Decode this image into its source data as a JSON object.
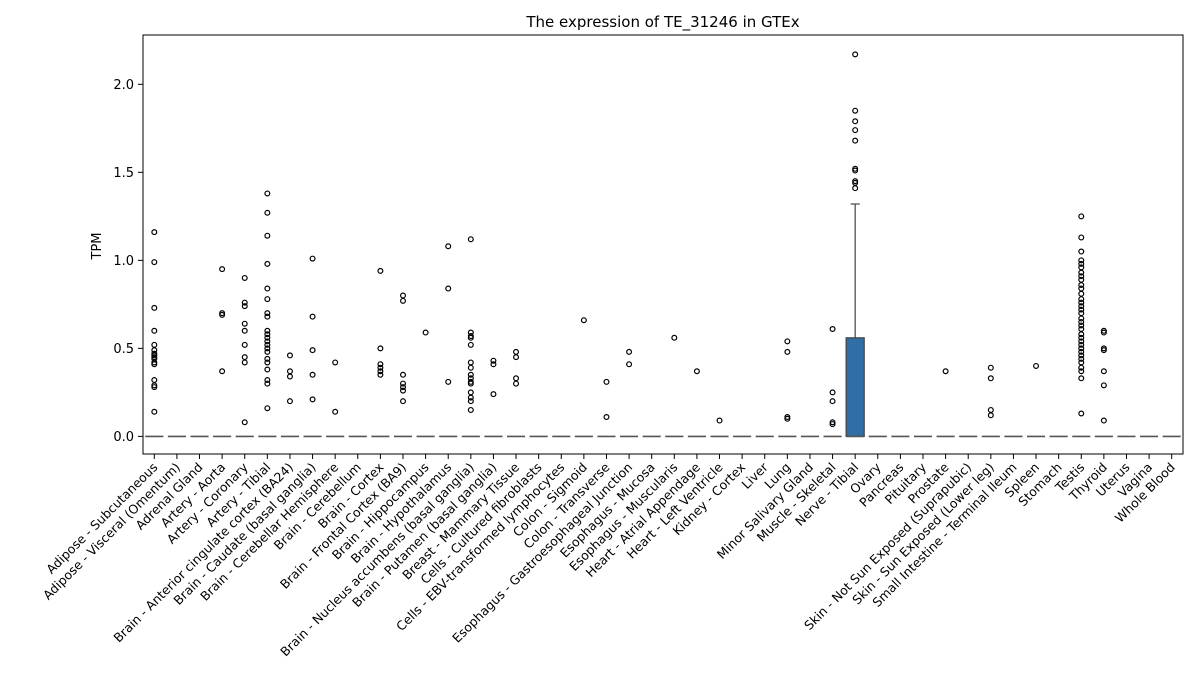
{
  "chart_data": {
    "type": "box",
    "title": "The expression of TE_31246 in GTEx",
    "xlabel": "",
    "ylabel": "TPM",
    "ylim": [
      -0.1,
      2.28
    ],
    "yticks": [
      0.0,
      0.5,
      1.0,
      1.5,
      2.0
    ],
    "ytick_labels": [
      "0.0",
      "0.5",
      "1.0",
      "1.5",
      "2.0"
    ],
    "grid": false,
    "box_color": "#2f6fa6",
    "categories": [
      "Adipose - Subcutaneous",
      "Adipose - Visceral (Omentum)",
      "Adrenal Gland",
      "Artery - Aorta",
      "Artery - Coronary",
      "Artery - Tibial",
      "Brain - Anterior cingulate cortex (BA24)",
      "Brain - Caudate (basal ganglia)",
      "Brain - Cerebellar Hemisphere",
      "Brain - Cerebellum",
      "Brain - Cortex",
      "Brain - Frontal Cortex (BA9)",
      "Brain - Hippocampus",
      "Brain - Hypothalamus",
      "Brain - Nucleus accumbens (basal ganglia)",
      "Brain - Putamen (basal ganglia)",
      "Breast - Mammary Tissue",
      "Cells - Cultured fibroblasts",
      "Cells - EBV-transformed lymphocytes",
      "Colon - Sigmoid",
      "Colon - Transverse",
      "Esophagus - Gastroesophageal Junction",
      "Esophagus - Mucosa",
      "Esophagus - Muscularis",
      "Heart - Atrial Appendage",
      "Heart - Left Ventricle",
      "Kidney - Cortex",
      "Liver",
      "Lung",
      "Minor Salivary Gland",
      "Muscle - Skeletal",
      "Nerve - Tibial",
      "Ovary",
      "Pancreas",
      "Pituitary",
      "Prostate",
      "Skin - Not Sun Exposed (Suprapubic)",
      "Skin - Sun Exposed (Lower leg)",
      "Small Intestine - Terminal Ileum",
      "Spleen",
      "Stomach",
      "Testis",
      "Thyroid",
      "Uterus",
      "Vagina",
      "Whole Blood"
    ],
    "boxes": [
      {
        "q1": 0,
        "median": 0,
        "q3": 0,
        "whislo": 0,
        "whishi": 0,
        "fliers": [
          1.16,
          0.99,
          0.73,
          0.6,
          0.52,
          0.49,
          0.47,
          0.46,
          0.45,
          0.44,
          0.42,
          0.41,
          0.32,
          0.29,
          0.28,
          0.14
        ]
      },
      {
        "q1": 0,
        "median": 0,
        "q3": 0,
        "whislo": 0,
        "whishi": 0,
        "fliers": []
      },
      {
        "q1": 0,
        "median": 0,
        "q3": 0,
        "whislo": 0,
        "whishi": 0,
        "fliers": []
      },
      {
        "q1": 0,
        "median": 0,
        "q3": 0,
        "whislo": 0,
        "whishi": 0,
        "fliers": [
          0.95,
          0.7,
          0.69,
          0.37
        ]
      },
      {
        "q1": 0,
        "median": 0,
        "q3": 0,
        "whislo": 0,
        "whishi": 0,
        "fliers": [
          0.9,
          0.76,
          0.74,
          0.64,
          0.6,
          0.52,
          0.45,
          0.42,
          0.08
        ]
      },
      {
        "q1": 0,
        "median": 0,
        "q3": 0,
        "whislo": 0,
        "whishi": 0,
        "fliers": [
          1.38,
          1.27,
          1.14,
          0.98,
          0.84,
          0.78,
          0.7,
          0.68,
          0.6,
          0.58,
          0.56,
          0.54,
          0.52,
          0.5,
          0.48,
          0.44,
          0.42,
          0.38,
          0.32,
          0.3,
          0.16
        ]
      },
      {
        "q1": 0,
        "median": 0,
        "q3": 0,
        "whislo": 0,
        "whishi": 0,
        "fliers": [
          0.46,
          0.37,
          0.34,
          0.2
        ]
      },
      {
        "q1": 0,
        "median": 0,
        "q3": 0,
        "whislo": 0,
        "whishi": 0,
        "fliers": [
          1.01,
          0.68,
          0.49,
          0.35,
          0.21
        ]
      },
      {
        "q1": 0,
        "median": 0,
        "q3": 0,
        "whislo": 0,
        "whishi": 0,
        "fliers": [
          0.42,
          0.14
        ]
      },
      {
        "q1": 0,
        "median": 0,
        "q3": 0,
        "whislo": 0,
        "whishi": 0,
        "fliers": []
      },
      {
        "q1": 0,
        "median": 0,
        "q3": 0,
        "whislo": 0,
        "whishi": 0,
        "fliers": [
          0.94,
          0.5,
          0.41,
          0.39,
          0.37,
          0.35
        ]
      },
      {
        "q1": 0,
        "median": 0,
        "q3": 0,
        "whislo": 0,
        "whishi": 0,
        "fliers": [
          0.8,
          0.77,
          0.35,
          0.3,
          0.28,
          0.26,
          0.2
        ]
      },
      {
        "q1": 0,
        "median": 0,
        "q3": 0,
        "whislo": 0,
        "whishi": 0,
        "fliers": [
          0.59
        ]
      },
      {
        "q1": 0,
        "median": 0,
        "q3": 0,
        "whislo": 0,
        "whishi": 0,
        "fliers": [
          1.08,
          0.84,
          0.31
        ]
      },
      {
        "q1": 0,
        "median": 0,
        "q3": 0,
        "whislo": 0,
        "whishi": 0,
        "fliers": [
          1.12,
          0.59,
          0.57,
          0.56,
          0.52,
          0.42,
          0.39,
          0.35,
          0.33,
          0.31,
          0.3,
          0.25,
          0.22,
          0.2,
          0.15
        ]
      },
      {
        "q1": 0,
        "median": 0,
        "q3": 0,
        "whislo": 0,
        "whishi": 0,
        "fliers": [
          0.43,
          0.41,
          0.24
        ]
      },
      {
        "q1": 0,
        "median": 0,
        "q3": 0,
        "whislo": 0,
        "whishi": 0,
        "fliers": [
          0.48,
          0.45,
          0.33,
          0.3
        ]
      },
      {
        "q1": 0,
        "median": 0,
        "q3": 0,
        "whislo": 0,
        "whishi": 0,
        "fliers": []
      },
      {
        "q1": 0,
        "median": 0,
        "q3": 0,
        "whislo": 0,
        "whishi": 0,
        "fliers": []
      },
      {
        "q1": 0,
        "median": 0,
        "q3": 0,
        "whislo": 0,
        "whishi": 0,
        "fliers": [
          0.66
        ]
      },
      {
        "q1": 0,
        "median": 0,
        "q3": 0,
        "whislo": 0,
        "whishi": 0,
        "fliers": [
          0.31,
          0.11
        ]
      },
      {
        "q1": 0,
        "median": 0,
        "q3": 0,
        "whislo": 0,
        "whishi": 0,
        "fliers": [
          0.48,
          0.41
        ]
      },
      {
        "q1": 0,
        "median": 0,
        "q3": 0,
        "whislo": 0,
        "whishi": 0,
        "fliers": []
      },
      {
        "q1": 0,
        "median": 0,
        "q3": 0,
        "whislo": 0,
        "whishi": 0,
        "fliers": [
          0.56
        ]
      },
      {
        "q1": 0,
        "median": 0,
        "q3": 0,
        "whislo": 0,
        "whishi": 0,
        "fliers": [
          0.37
        ]
      },
      {
        "q1": 0,
        "median": 0,
        "q3": 0,
        "whislo": 0,
        "whishi": 0,
        "fliers": [
          0.09
        ]
      },
      {
        "q1": 0,
        "median": 0,
        "q3": 0,
        "whislo": 0,
        "whishi": 0,
        "fliers": []
      },
      {
        "q1": 0,
        "median": 0,
        "q3": 0,
        "whislo": 0,
        "whishi": 0,
        "fliers": []
      },
      {
        "q1": 0,
        "median": 0,
        "q3": 0,
        "whislo": 0,
        "whishi": 0,
        "fliers": [
          0.54,
          0.48,
          0.11,
          0.1
        ]
      },
      {
        "q1": 0,
        "median": 0,
        "q3": 0,
        "whislo": 0,
        "whishi": 0,
        "fliers": []
      },
      {
        "q1": 0,
        "median": 0,
        "q3": 0,
        "whislo": 0,
        "whishi": 0,
        "fliers": [
          0.61,
          0.25,
          0.2,
          0.08,
          0.07
        ]
      },
      {
        "q1": 0,
        "median": 0,
        "q3": 0.56,
        "whislo": 0,
        "whishi": 1.32,
        "fliers": [
          2.17,
          1.85,
          1.79,
          1.74,
          1.68,
          1.52,
          1.51,
          1.45,
          1.44,
          1.41
        ]
      },
      {
        "q1": 0,
        "median": 0,
        "q3": 0,
        "whislo": 0,
        "whishi": 0,
        "fliers": []
      },
      {
        "q1": 0,
        "median": 0,
        "q3": 0,
        "whislo": 0,
        "whishi": 0,
        "fliers": []
      },
      {
        "q1": 0,
        "median": 0,
        "q3": 0,
        "whislo": 0,
        "whishi": 0,
        "fliers": []
      },
      {
        "q1": 0,
        "median": 0,
        "q3": 0,
        "whislo": 0,
        "whishi": 0,
        "fliers": [
          0.37
        ]
      },
      {
        "q1": 0,
        "median": 0,
        "q3": 0,
        "whislo": 0,
        "whishi": 0,
        "fliers": []
      },
      {
        "q1": 0,
        "median": 0,
        "q3": 0,
        "whislo": 0,
        "whishi": 0,
        "fliers": [
          0.39,
          0.33,
          0.15,
          0.12
        ]
      },
      {
        "q1": 0,
        "median": 0,
        "q3": 0,
        "whislo": 0,
        "whishi": 0,
        "fliers": []
      },
      {
        "q1": 0,
        "median": 0,
        "q3": 0,
        "whislo": 0,
        "whishi": 0,
        "fliers": [
          0.4
        ]
      },
      {
        "q1": 0,
        "median": 0,
        "q3": 0,
        "whislo": 0,
        "whishi": 0,
        "fliers": []
      },
      {
        "q1": 0,
        "median": 0,
        "q3": 0,
        "whislo": 0,
        "whishi": 0,
        "fliers": [
          1.25,
          1.13,
          1.05,
          1.0,
          0.98,
          0.96,
          0.93,
          0.91,
          0.89,
          0.86,
          0.84,
          0.81,
          0.78,
          0.76,
          0.74,
          0.72,
          0.7,
          0.67,
          0.65,
          0.63,
          0.61,
          0.58,
          0.56,
          0.54,
          0.52,
          0.5,
          0.48,
          0.46,
          0.44,
          0.42,
          0.39,
          0.37,
          0.33,
          0.13
        ]
      },
      {
        "q1": 0,
        "median": 0,
        "q3": 0,
        "whislo": 0,
        "whishi": 0,
        "fliers": [
          0.6,
          0.59,
          0.5,
          0.49,
          0.37,
          0.29,
          0.09
        ]
      },
      {
        "q1": 0,
        "median": 0,
        "q3": 0,
        "whislo": 0,
        "whishi": 0,
        "fliers": []
      },
      {
        "q1": 0,
        "median": 0,
        "q3": 0,
        "whislo": 0,
        "whishi": 0,
        "fliers": []
      },
      {
        "q1": 0,
        "median": 0,
        "q3": 0,
        "whislo": 0,
        "whishi": 0,
        "fliers": []
      }
    ]
  }
}
